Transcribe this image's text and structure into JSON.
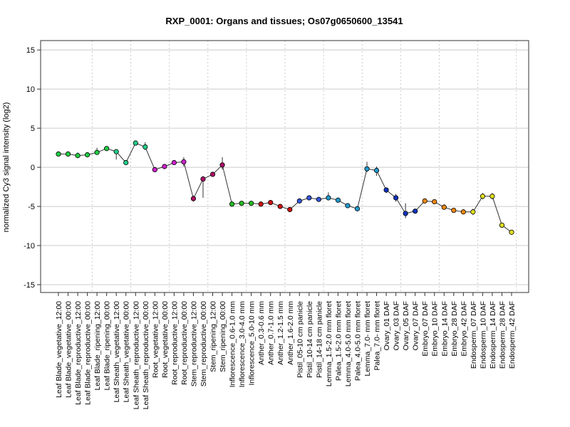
{
  "chart_data": {
    "type": "line",
    "title": "RXP_0001: Organs and tissues; Os07g0650600_13541",
    "xlabel": "",
    "ylabel": "normalized Cy3 signal intensity (log2)",
    "ylim": [
      -16,
      16.2
    ],
    "yticks": [
      -15,
      -10,
      -5,
      0,
      5,
      10,
      15
    ],
    "grid": true,
    "categories": [
      "Leaf Blade_vegetative_12:00",
      "Leaf Blade_vegetative_00:00",
      "Leaf Blade_reproductive_12:00",
      "Leaf Blade_reproductive_00:00",
      "Leaf Blade_ripening_12:00",
      "Leaf Blade_ripening_00:00",
      "Leaf Sheath_vegetative_12:00",
      "Leaf Sheath_vegetative_00:00",
      "Leaf Sheath_reproductive_12:00",
      "Leaf Sheath_reproductive_00:00",
      "Root_vegetative_12:00",
      "Root_vegetative_00:00",
      "Root_reproductive_12:00",
      "Root_reproductive_00:00",
      "Stem_reproductive_12:00",
      "Stem_reproductive_00:00",
      "Stem_ripening_12:00",
      "Stem_ripening_00:00",
      "Inflorescence_0.6-1.0 mm",
      "Inflorescence_3.0-4.0 mm",
      "Inflorescence_5.0-10 mm",
      "Anther_0.3-0.6 mm",
      "Anther_0.7-1.0 mm",
      "Anther_1.2-1.5 mm",
      "Anther_1.6-2.0 mm",
      "Pistil_05-10 cm panicle",
      "Pistil_10-14 cm panicle",
      "Pistil_14-18 cm panicle",
      "Lemma_1.5-2.0 mm floret",
      "Palea_1.5-2.0 mm floret",
      "Lemma_4.0-5.0 mm floret",
      "Palea_4.0-5.0 mm floret",
      "Lemma_7.0- mm floret",
      "Palea_7.0- mm floret",
      "Ovary_01 DAF",
      "Ovary_03 DAF",
      "Ovary_05 DAF",
      "Ovary_07 DAF",
      "Embryo_07 DAF",
      "Embryo_10 DAF",
      "Embryo_14 DAF",
      "Embryo_28 DAF",
      "Embryo_42 DAF",
      "Endosperm_07 DAF",
      "Endosperm_10 DAF",
      "Endosperm_14 DAF",
      "Endosperm_28 DAF",
      "Endosperm_42 DAF"
    ],
    "values": [
      1.7,
      1.7,
      1.5,
      1.6,
      1.9,
      2.4,
      2.0,
      0.6,
      3.1,
      2.6,
      -0.3,
      0.1,
      0.6,
      0.7,
      -4.0,
      -1.5,
      -0.9,
      0.3,
      -4.7,
      -4.6,
      -4.6,
      -4.7,
      -4.5,
      -5.0,
      -5.4,
      -4.3,
      -3.9,
      -4.1,
      -3.9,
      -4.2,
      -4.9,
      -5.3,
      -0.2,
      -0.4,
      -2.9,
      -3.9,
      -5.9,
      -5.6,
      -4.3,
      -4.4,
      -5.1,
      -5.5,
      -5.7,
      -5.7,
      -3.7,
      -3.7,
      -7.4,
      -8.3
    ],
    "err_low": [
      1.5,
      1.5,
      1.2,
      1.4,
      1.6,
      2.1,
      1.0,
      0.4,
      2.9,
      2.2,
      -0.5,
      -0.1,
      0.3,
      0.1,
      -4.4,
      -3.9,
      -1.2,
      -0.3,
      -4.9,
      -4.8,
      -4.8,
      -4.9,
      -4.7,
      -5.3,
      -5.7,
      -4.5,
      -4.1,
      -4.3,
      -4.2,
      -4.4,
      -5.1,
      -5.6,
      -0.6,
      -1.1,
      -3.3,
      -4.4,
      -6.5,
      -5.8,
      -4.5,
      -4.6,
      -5.4,
      -5.8,
      -6.0,
      -6.1,
      -4.1,
      -4.1,
      -7.6,
      -8.5
    ],
    "err_high": [
      1.9,
      1.9,
      1.9,
      1.8,
      2.5,
      2.7,
      2.2,
      0.8,
      3.3,
      3.2,
      -0.1,
      0.3,
      0.8,
      1.3,
      -3.6,
      -1.1,
      -0.6,
      1.3,
      -4.5,
      -4.4,
      -4.4,
      -4.5,
      -4.3,
      -4.7,
      -5.1,
      -4.1,
      -3.7,
      -3.9,
      -3.2,
      -4.0,
      -4.7,
      -5.0,
      0.7,
      0.1,
      -2.6,
      -3.4,
      -4.6,
      -5.4,
      -4.1,
      -4.2,
      -4.7,
      -5.2,
      -5.4,
      -5.3,
      -3.3,
      -3.3,
      -7.2,
      -8.1
    ],
    "colors": [
      "#22cc44",
      "#22cc44",
      "#22cc44",
      "#22cc44",
      "#22cc44",
      "#22cc44",
      "#22cc88",
      "#22cc88",
      "#22cc88",
      "#22cc88",
      "#cc22cc",
      "#cc22cc",
      "#cc22cc",
      "#cc22cc",
      "#aa1166",
      "#aa1166",
      "#aa1166",
      "#aa1166",
      "#22bb22",
      "#22bb22",
      "#22bb22",
      "#cc1111",
      "#cc1111",
      "#cc1111",
      "#cc1111",
      "#3355dd",
      "#3355dd",
      "#3355dd",
      "#2299cc",
      "#2299cc",
      "#2299cc",
      "#2299cc",
      "#2299cc",
      "#2299cc",
      "#1133bb",
      "#1133bb",
      "#1133bb",
      "#1133bb",
      "#ee8811",
      "#ee8811",
      "#ee8811",
      "#ee8811",
      "#ee8811",
      "#dddd22",
      "#dddd22",
      "#dddd22",
      "#dddd22",
      "#dddd22"
    ]
  }
}
